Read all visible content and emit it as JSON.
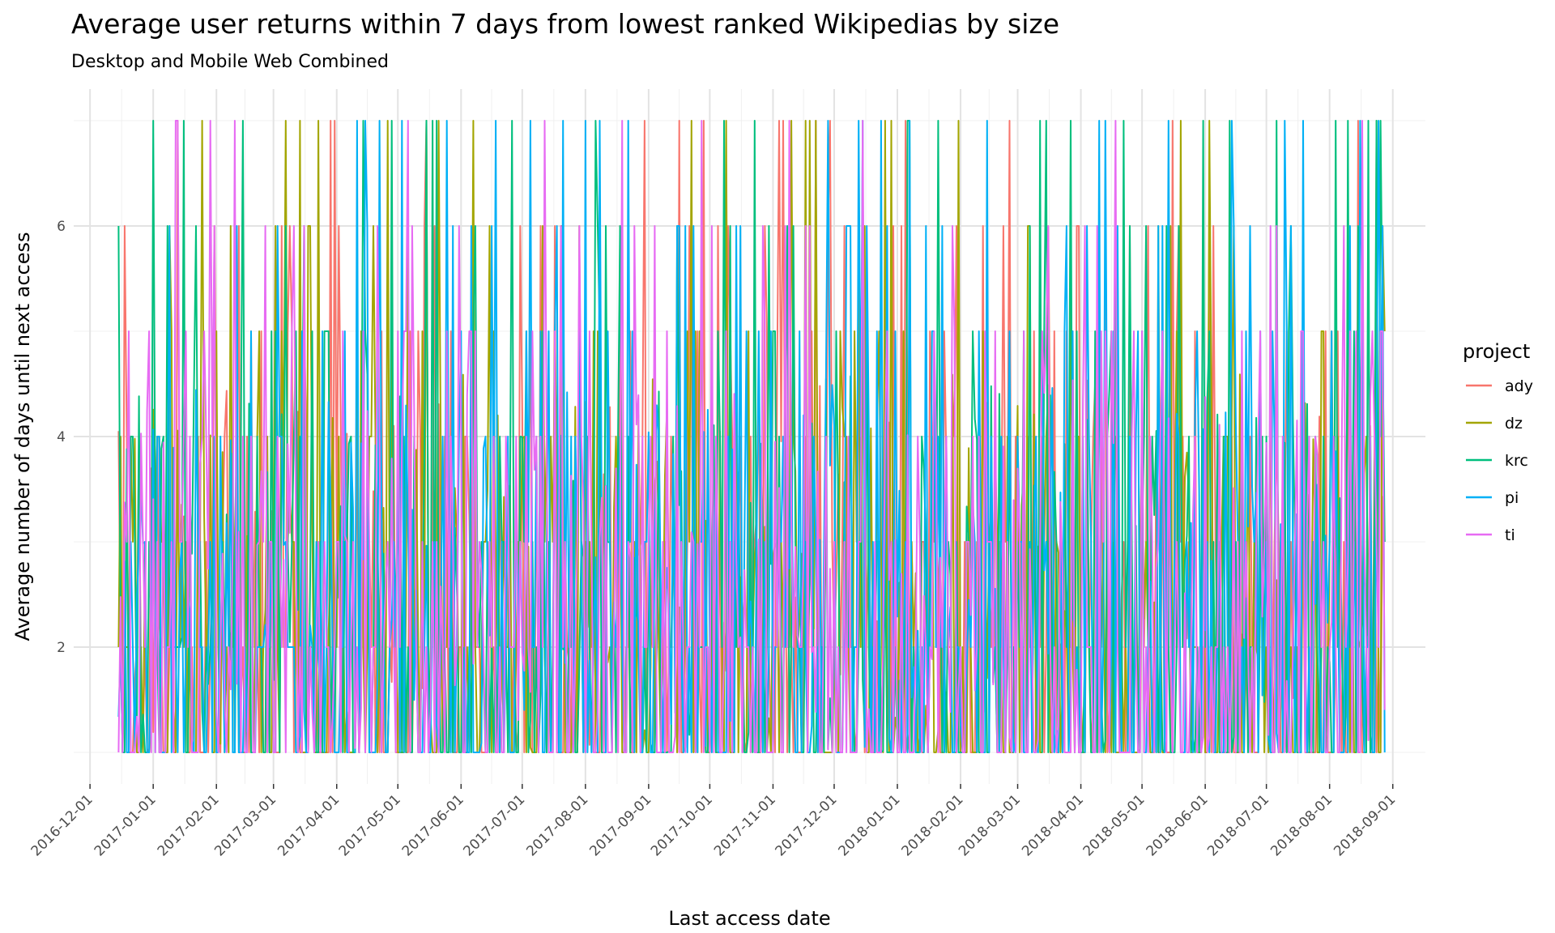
{
  "chart_data": {
    "type": "line",
    "title": "Average user returns within 7 days from lowest ranked Wikipedias by size",
    "subtitle": "Desktop and Mobile Web Combined",
    "xlabel": "Last access date",
    "ylabel": "Average number of days until next access",
    "x_range": [
      "2016-12-15",
      "2018-08-28"
    ],
    "ylim": [
      1,
      7
    ],
    "y_ticks": [
      2,
      4,
      6
    ],
    "x_ticks": [
      "2016-12-01",
      "2017-01-01",
      "2017-02-01",
      "2017-03-01",
      "2017-04-01",
      "2017-05-01",
      "2017-06-01",
      "2017-07-01",
      "2017-08-01",
      "2017-09-01",
      "2017-10-01",
      "2017-11-01",
      "2017-12-01",
      "2018-01-01",
      "2018-02-01",
      "2018-03-01",
      "2018-04-01",
      "2018-05-01",
      "2018-06-01",
      "2018-07-01",
      "2018-08-01",
      "2018-09-01"
    ],
    "grid": true,
    "legend": {
      "title": "project",
      "position": "right"
    },
    "series": [
      {
        "name": "ady",
        "color": "#F8766D",
        "seed": 11
      },
      {
        "name": "dz",
        "color": "#A3A500",
        "seed": 23
      },
      {
        "name": "krc",
        "color": "#00BF7D",
        "seed": 37
      },
      {
        "name": "pi",
        "color": "#00B0F6",
        "seed": 53
      },
      {
        "name": "ti",
        "color": "#E76BF3",
        "seed": 71
      }
    ]
  }
}
